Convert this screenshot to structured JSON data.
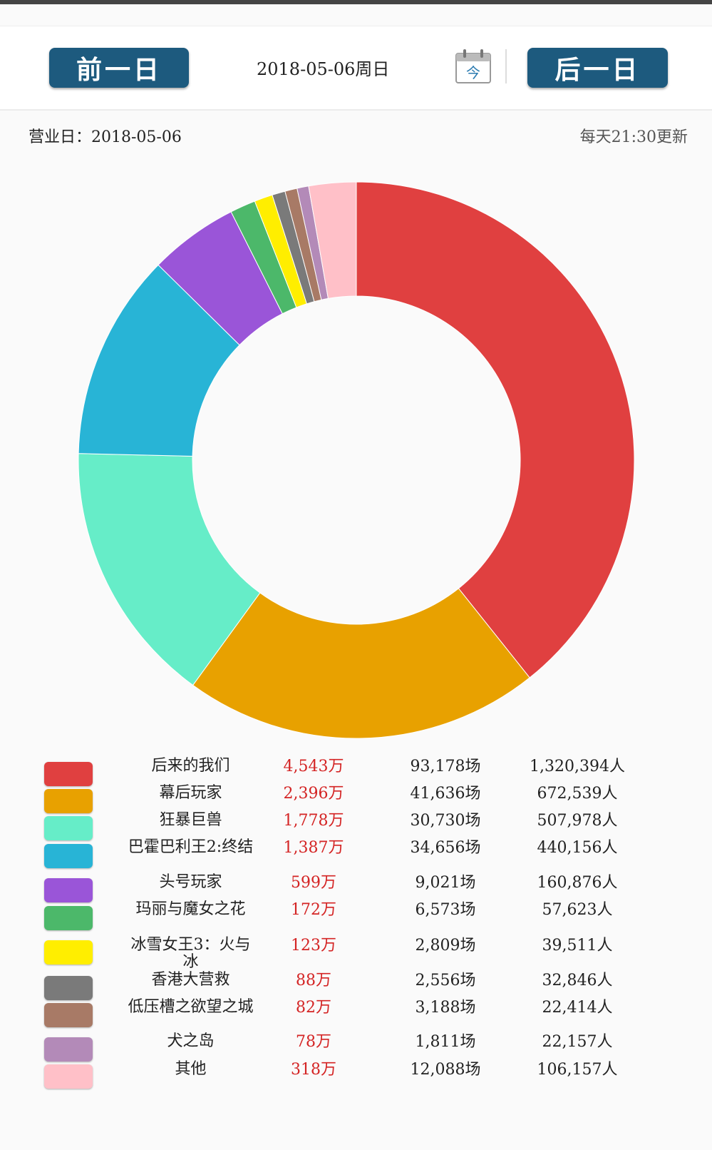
{
  "nav": {
    "prev_label": "前一日",
    "next_label": "后一日",
    "date_text": "2018-05-06周日",
    "calendar_today": "今"
  },
  "info": {
    "business_day": "营业日：2018-05-06",
    "update_note": "每天21:30更新"
  },
  "chart_data": {
    "type": "pie",
    "donut": true,
    "categories": [
      "后来的我们",
      "幕后玩家",
      "狂暴巨兽",
      "巴霍巴利王2:终结",
      "头号玩家",
      "玛丽与魔女之花",
      "冰雪女王3：火与冰",
      "香港大营救",
      "低压槽之欲望之城",
      "犬之岛",
      "其他"
    ],
    "values": [
      4543,
      2396,
      1778,
      1387,
      599,
      172,
      123,
      88,
      82,
      78,
      318
    ],
    "colors": [
      "#e04040",
      "#e8a100",
      "#66edc8",
      "#28b4d6",
      "#9a55d8",
      "#4cb86a",
      "#ffee00",
      "#7a7a7a",
      "#a87a66",
      "#b38ab8",
      "#ffc0c8"
    ]
  },
  "table": {
    "rows": [
      {
        "name": "后来的我们",
        "box": "4,543万",
        "shows": "93,178场",
        "people": "1,320,394人"
      },
      {
        "name": "幕后玩家",
        "box": "2,396万",
        "shows": "41,636场",
        "people": "672,539人"
      },
      {
        "name": "狂暴巨兽",
        "box": "1,778万",
        "shows": "30,730场",
        "people": "507,978人"
      },
      {
        "name": "巴霍巴利王2:终结",
        "box": "1,387万",
        "shows": "34,656场",
        "people": "440,156人"
      },
      {
        "name": "头号玩家",
        "box": "599万",
        "shows": "9,021场",
        "people": "160,876人"
      },
      {
        "name": "玛丽与魔女之花",
        "box": "172万",
        "shows": "6,573场",
        "people": "57,623人"
      },
      {
        "name": "冰雪女王3：火与冰",
        "box": "123万",
        "shows": "2,809场",
        "people": "39,511人"
      },
      {
        "name": "香港大营救",
        "box": "88万",
        "shows": "2,556场",
        "people": "32,846人"
      },
      {
        "name": "低压槽之欲望之城",
        "box": "82万",
        "shows": "3,188场",
        "people": "22,414人"
      },
      {
        "name": "犬之岛",
        "box": "78万",
        "shows": "1,811场",
        "people": "22,157人"
      },
      {
        "name": "其他",
        "box": "318万",
        "shows": "12,088场",
        "people": "106,157人"
      }
    ]
  }
}
